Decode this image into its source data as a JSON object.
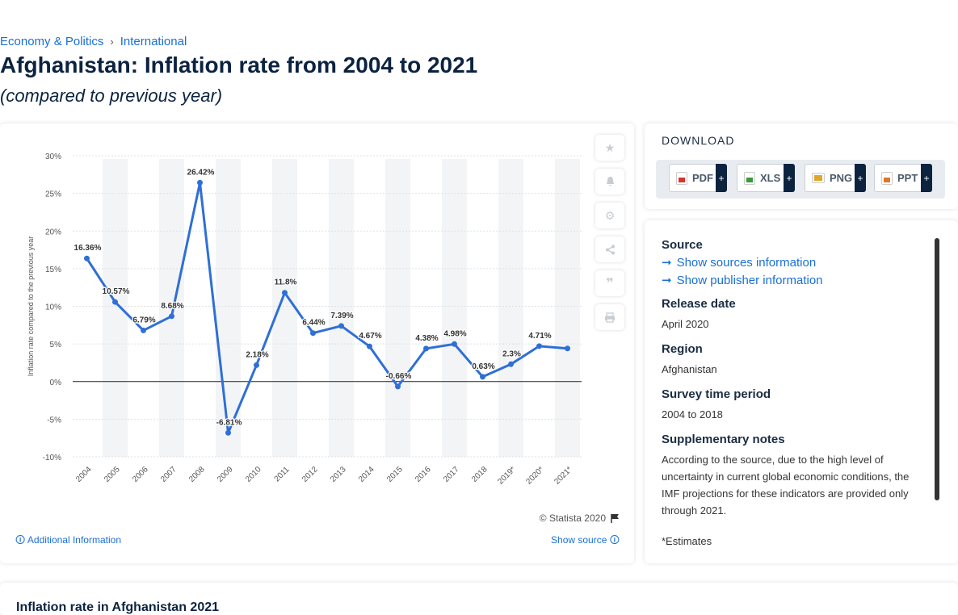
{
  "breadcrumb": {
    "item1": "Economy & Politics",
    "item2": "International"
  },
  "title": "Afghanistan: Inflation rate from 2004 to 2021",
  "subtitle": "(compared to previous year)",
  "chart_data": {
    "type": "line",
    "categories": [
      "2004",
      "2005",
      "2006",
      "2007",
      "2008",
      "2009",
      "2010",
      "2011",
      "2012",
      "2013",
      "2014",
      "2015",
      "2016",
      "2017",
      "2018",
      "2019*",
      "2020*",
      "2021*"
    ],
    "values": [
      16.36,
      10.57,
      6.79,
      8.68,
      26.42,
      -6.81,
      2.18,
      11.8,
      6.44,
      7.39,
      4.67,
      -0.66,
      4.38,
      4.98,
      0.63,
      2.3,
      4.71,
      4.4
    ],
    "data_labels": [
      "16.36%",
      "10.57%",
      "6.79%",
      "8.68%",
      "26.42%",
      "-6.81%",
      "2.18%",
      "11.8%",
      "6.44%",
      "7.39%",
      "4.67%",
      "-0.66%",
      "4.38%",
      "4.98%",
      "0.63%",
      "2.3%",
      "4.71%",
      ""
    ],
    "ylabel": "Inflation rate compared to the previous year",
    "yticks": [
      "30%",
      "25%",
      "20%",
      "15%",
      "10%",
      "5%",
      "0%",
      "-5%",
      "-10%"
    ],
    "ylim": [
      -10,
      30
    ],
    "line_color": "#2f6fd6"
  },
  "toolbar": {
    "favorite_icon": "star-icon",
    "alert_icon": "bell-icon",
    "settings_icon": "gear-icon",
    "share_icon": "share-icon",
    "cite_icon": "quote-icon",
    "print_icon": "print-icon"
  },
  "footer": {
    "copyright": "© Statista 2020",
    "additional_info": "Additional Information",
    "show_source": "Show source"
  },
  "download": {
    "title": "DOWNLOAD",
    "buttons": [
      {
        "label": "PDF",
        "plus": "+",
        "color": "#d9342b"
      },
      {
        "label": "XLS",
        "plus": "+",
        "color": "#3d9a3d"
      },
      {
        "label": "PNG",
        "plus": "+",
        "color": "#e0a52b"
      },
      {
        "label": "PPT",
        "plus": "+",
        "color": "#e0762b"
      }
    ]
  },
  "info": {
    "source_label": "Source",
    "show_sources": "Show sources information",
    "show_publisher": "Show publisher information",
    "release_label": "Release date",
    "release_value": "April 2020",
    "region_label": "Region",
    "region_value": "Afghanistan",
    "survey_label": "Survey time period",
    "survey_value": "2004 to 2018",
    "notes_label": "Supplementary notes",
    "notes_value": "According to the source, due to the high level of uncertainty in current global economic conditions, the IMF projections for these indicators are provided only through 2021.",
    "footnote": "*Estimates"
  },
  "bottom": {
    "title": "Inflation rate in Afghanistan 2021"
  }
}
